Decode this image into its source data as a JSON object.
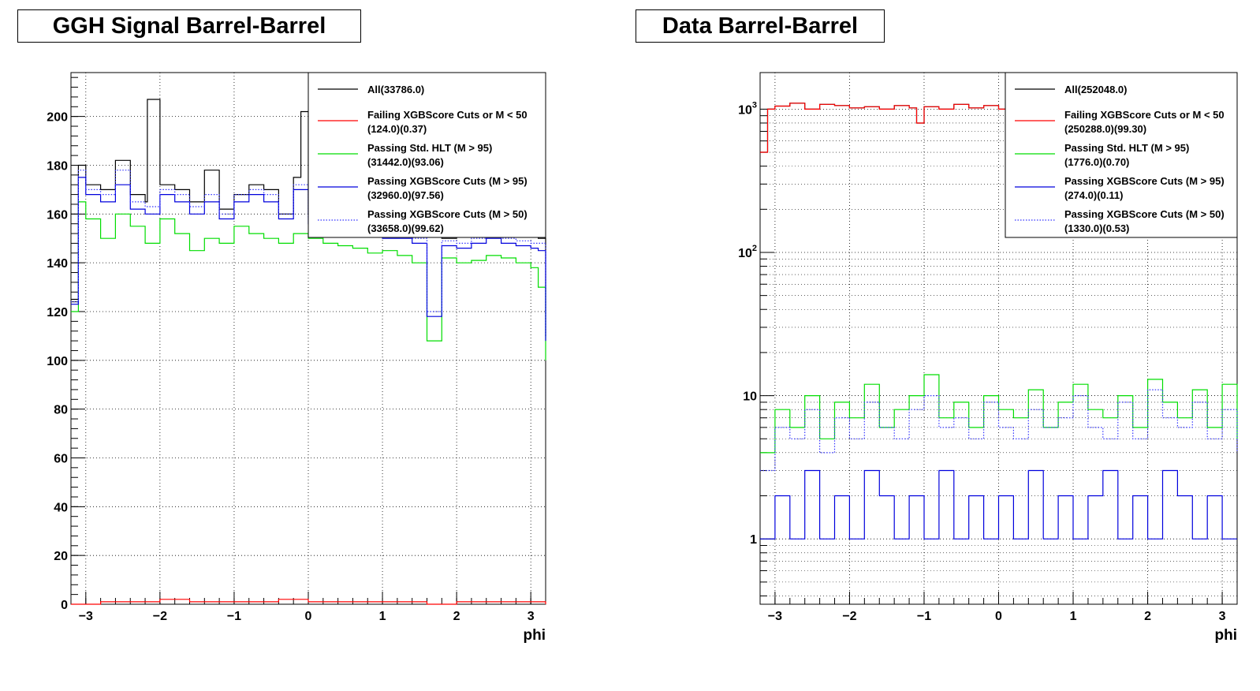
{
  "colors": {
    "all": "#000000",
    "failing": "#ff0000",
    "std_hlt": "#00dd00",
    "xgb_m95": "#0000dd",
    "xgb_m50": "#3333ff"
  },
  "chart_data": [
    {
      "type": "line",
      "title": "GGH Signal Barrel-Barrel",
      "xlabel": "phi",
      "ylabel": "",
      "xlim": [
        -3.2,
        3.2
      ],
      "ylim": [
        0,
        218
      ],
      "log_y": false,
      "grid": true,
      "legend_placement": "top-right",
      "x_ticks": [
        "−3",
        "−2",
        "−1",
        "0",
        "1",
        "2",
        "3"
      ],
      "y_ticks": [
        "0",
        "20",
        "40",
        "60",
        "80",
        "100",
        "120",
        "140",
        "160",
        "180",
        "200"
      ],
      "series": [
        {
          "name": "All(33786.0)",
          "style": "solid",
          "color_key": "all",
          "x": [
            -3.2,
            -3.1,
            -3.0,
            -2.8,
            -2.6,
            -2.4,
            -2.2,
            -2.17,
            -2.0,
            -1.8,
            -1.6,
            -1.4,
            -1.2,
            -1.0,
            -0.8,
            -0.6,
            -0.4,
            -0.2,
            -0.1,
            0.0,
            0.2,
            0.4,
            0.6,
            0.8,
            1.0,
            1.2,
            1.4,
            1.6,
            1.8,
            2.0,
            2.2,
            2.4,
            2.6,
            2.8,
            3.0,
            3.1,
            3.2
          ],
          "values": [
            125,
            180,
            172,
            170,
            182,
            168,
            165,
            207,
            172,
            170,
            165,
            178,
            162,
            168,
            172,
            170,
            160,
            175,
            202,
            160,
            162,
            158,
            155,
            160,
            158,
            156,
            155,
            152,
            150,
            152,
            154,
            152,
            153,
            152,
            152,
            150,
            110
          ]
        },
        {
          "name": "Failing XGBScore Cuts or M < 50",
          "stats": "(124.0)(0.37)",
          "style": "solid",
          "color_key": "failing",
          "x": [
            -3.2,
            -2.8,
            -2.4,
            -2.0,
            -1.6,
            -1.2,
            -0.8,
            -0.4,
            0.0,
            0.4,
            0.8,
            1.2,
            1.6,
            2.0,
            2.4,
            2.8,
            3.2
          ],
          "values": [
            0,
            1,
            1,
            2,
            1,
            1,
            1,
            2,
            1,
            1,
            1,
            1,
            0,
            1,
            1,
            1,
            0
          ]
        },
        {
          "name": "Passing Std. HLT (M > 95)",
          "stats": "(31442.0)(93.06)",
          "style": "solid",
          "color_key": "std_hlt",
          "x": [
            -3.2,
            -3.1,
            -3.0,
            -2.8,
            -2.6,
            -2.4,
            -2.2,
            -2.0,
            -1.8,
            -1.6,
            -1.4,
            -1.2,
            -1.0,
            -0.8,
            -0.6,
            -0.4,
            -0.2,
            0.0,
            0.2,
            0.4,
            0.6,
            0.8,
            1.0,
            1.2,
            1.4,
            1.6,
            1.8,
            2.0,
            2.2,
            2.4,
            2.6,
            2.8,
            3.0,
            3.1,
            3.2
          ],
          "values": [
            120,
            165,
            158,
            150,
            160,
            155,
            148,
            158,
            152,
            145,
            150,
            148,
            155,
            152,
            150,
            148,
            152,
            150,
            148,
            147,
            146,
            144,
            145,
            143,
            140,
            108,
            142,
            140,
            141,
            143,
            142,
            140,
            138,
            130,
            100
          ]
        },
        {
          "name": "Passing XGBScore Cuts (M > 95)",
          "stats": "(32960.0)(97.56)",
          "style": "solid",
          "color_key": "xgb_m95",
          "x": [
            -3.2,
            -3.1,
            -3.0,
            -2.8,
            -2.6,
            -2.4,
            -2.2,
            -2.0,
            -1.8,
            -1.6,
            -1.4,
            -1.2,
            -1.0,
            -0.8,
            -0.6,
            -0.4,
            -0.2,
            0.0,
            0.2,
            0.4,
            0.6,
            0.8,
            1.0,
            1.2,
            1.4,
            1.6,
            1.8,
            2.0,
            2.2,
            2.4,
            2.6,
            2.8,
            3.0,
            3.1,
            3.2
          ],
          "values": [
            123,
            175,
            168,
            165,
            172,
            162,
            160,
            168,
            165,
            160,
            165,
            158,
            165,
            168,
            165,
            158,
            170,
            156,
            158,
            154,
            152,
            153,
            150,
            150,
            148,
            118,
            147,
            146,
            148,
            150,
            148,
            147,
            146,
            145,
            108
          ]
        },
        {
          "name": "Passing XGBScore Cuts (M > 50)",
          "stats": "(33658.0)(99.62)",
          "style": "dotted",
          "color_key": "xgb_m50",
          "x": [
            -3.2,
            -3.1,
            -3.0,
            -2.8,
            -2.6,
            -2.4,
            -2.2,
            -2.0,
            -1.8,
            -1.6,
            -1.4,
            -1.2,
            -1.0,
            -0.8,
            -0.6,
            -0.4,
            -0.2,
            0.0,
            0.2,
            0.4,
            0.6,
            0.8,
            1.0,
            1.2,
            1.4,
            1.6,
            1.8,
            2.0,
            2.2,
            2.4,
            2.6,
            2.8,
            3.0,
            3.1,
            3.2
          ],
          "values": [
            124,
            178,
            170,
            168,
            178,
            165,
            163,
            170,
            168,
            163,
            168,
            160,
            168,
            170,
            168,
            160,
            172,
            158,
            160,
            156,
            154,
            155,
            152,
            152,
            150,
            120,
            149,
            148,
            150,
            152,
            150,
            149,
            148,
            148,
            110
          ]
        }
      ],
      "legend": [
        {
          "label": "All(33786.0)",
          "sub": ""
        },
        {
          "label": "Failing XGBScore Cuts or M < 50",
          "sub": "(124.0)(0.37)"
        },
        {
          "label": "Passing Std. HLT (M > 95)",
          "sub": "(31442.0)(93.06)"
        },
        {
          "label": "Passing XGBScore Cuts (M > 95)",
          "sub": "(32960.0)(97.56)"
        },
        {
          "label": "Passing XGBScore Cuts (M > 50)",
          "sub": "(33658.0)(99.62)"
        }
      ]
    },
    {
      "type": "line",
      "title": "Data Barrel-Barrel",
      "xlabel": "phi",
      "ylabel": "",
      "xlim": [
        -3.2,
        3.2
      ],
      "ylim": [
        0.35,
        1800
      ],
      "log_y": true,
      "grid": true,
      "legend_placement": "top-right",
      "x_ticks": [
        "−3",
        "−2",
        "−1",
        "0",
        "1",
        "2",
        "3"
      ],
      "y_ticks": [
        "1",
        "10",
        "10^2",
        "10^3"
      ],
      "series": [
        {
          "name": "All(252048.0)",
          "style": "solid",
          "color_key": "all",
          "x": [
            -3.2,
            -3.1,
            -3.0,
            -2.8,
            -2.6,
            -2.4,
            -2.2,
            -2.0,
            -1.8,
            -1.6,
            -1.4,
            -1.2,
            -1.1,
            -1.0,
            -0.8,
            -0.6,
            -0.4,
            -0.2,
            0.0,
            3.1,
            3.2
          ],
          "values": [
            500,
            1000,
            1050,
            1100,
            1000,
            1080,
            1060,
            1020,
            1040,
            1000,
            1060,
            1020,
            800,
            1040,
            1000,
            1080,
            1020,
            1060,
            1000,
            1000,
            1000
          ]
        },
        {
          "name": "Failing XGBScore Cuts or M < 50",
          "stats": "(250288.0)(99.30)",
          "style": "solid",
          "color_key": "failing",
          "x": [
            -3.2,
            -3.1,
            -3.0,
            -2.8,
            -2.6,
            -2.4,
            -2.2,
            -2.0,
            -1.8,
            -1.6,
            -1.4,
            -1.2,
            -1.1,
            -1.0,
            -0.8,
            -0.6,
            -0.4,
            -0.2,
            0.0,
            3.1,
            3.2
          ],
          "values": [
            500,
            1000,
            1050,
            1100,
            1000,
            1080,
            1060,
            1020,
            1040,
            1000,
            1060,
            1020,
            800,
            1040,
            1000,
            1080,
            1020,
            1060,
            1000,
            1000,
            1000
          ]
        },
        {
          "name": "Passing Std. HLT (M > 95)",
          "stats": "(1776.0)(0.70)",
          "style": "solid",
          "color_key": "std_hlt",
          "x": [
            -3.2,
            -3.0,
            -2.8,
            -2.6,
            -2.4,
            -2.2,
            -2.0,
            -1.8,
            -1.6,
            -1.4,
            -1.2,
            -1.0,
            -0.8,
            -0.6,
            -0.4,
            -0.2,
            0.0,
            0.2,
            0.4,
            0.6,
            0.8,
            1.0,
            1.2,
            1.4,
            1.6,
            1.8,
            2.0,
            2.2,
            2.4,
            2.6,
            2.8,
            3.0,
            3.2
          ],
          "values": [
            4,
            8,
            6,
            10,
            5,
            9,
            7,
            12,
            6,
            8,
            10,
            14,
            7,
            9,
            6,
            10,
            8,
            7,
            11,
            6,
            9,
            12,
            8,
            7,
            10,
            6,
            13,
            9,
            7,
            11,
            6,
            12,
            5
          ]
        },
        {
          "name": "Passing XGBScore Cuts (M > 95)",
          "stats": "(274.0)(0.11)",
          "style": "solid",
          "color_key": "xgb_m95",
          "x": [
            -3.2,
            -3.0,
            -2.8,
            -2.6,
            -2.4,
            -2.2,
            -2.0,
            -1.8,
            -1.6,
            -1.4,
            -1.2,
            -1.0,
            -0.8,
            -0.6,
            -0.4,
            -0.2,
            0.0,
            0.2,
            0.4,
            0.6,
            0.8,
            1.0,
            1.2,
            1.4,
            1.6,
            1.8,
            2.0,
            2.2,
            2.4,
            2.6,
            2.8,
            3.0,
            3.2
          ],
          "values": [
            1,
            2,
            1,
            3,
            1,
            2,
            1,
            3,
            2,
            1,
            2,
            1,
            3,
            1,
            2,
            1,
            2,
            1,
            3,
            1,
            2,
            1,
            2,
            3,
            1,
            2,
            1,
            3,
            2,
            1,
            2,
            1,
            1
          ]
        },
        {
          "name": "Passing XGBScore Cuts (M > 50)",
          "stats": "(1330.0)(0.53)",
          "style": "dotted",
          "color_key": "xgb_m50",
          "x": [
            -3.2,
            -3.0,
            -2.8,
            -2.6,
            -2.4,
            -2.2,
            -2.0,
            -1.8,
            -1.6,
            -1.4,
            -1.2,
            -1.0,
            -0.8,
            -0.6,
            -0.4,
            -0.2,
            0.0,
            0.2,
            0.4,
            0.6,
            0.8,
            1.0,
            1.2,
            1.4,
            1.6,
            1.8,
            2.0,
            2.2,
            2.4,
            2.6,
            2.8,
            3.0,
            3.2
          ],
          "values": [
            3,
            6,
            5,
            8,
            4,
            7,
            5,
            9,
            6,
            5,
            8,
            10,
            6,
            7,
            5,
            9,
            6,
            5,
            8,
            6,
            7,
            10,
            6,
            5,
            9,
            5,
            11,
            7,
            6,
            9,
            5,
            8,
            4
          ]
        }
      ],
      "legend": [
        {
          "label": "All(252048.0)",
          "sub": ""
        },
        {
          "label": "Failing XGBScore Cuts or M < 50",
          "sub": "(250288.0)(99.30)"
        },
        {
          "label": "Passing Std. HLT (M > 95)",
          "sub": "(1776.0)(0.70)"
        },
        {
          "label": "Passing XGBScore Cuts (M > 95)",
          "sub": "(274.0)(0.11)"
        },
        {
          "label": "Passing XGBScore Cuts (M > 50)",
          "sub": "(1330.0)(0.53)"
        }
      ]
    }
  ]
}
